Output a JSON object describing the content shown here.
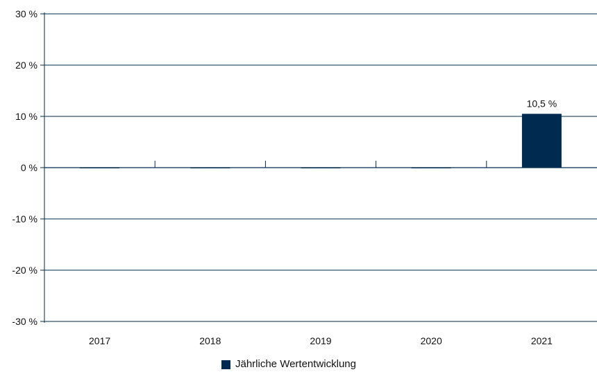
{
  "chart_data": {
    "type": "bar",
    "categories": [
      "2017",
      "2018",
      "2019",
      "2020",
      "2021"
    ],
    "series": [
      {
        "name": "Jährliche Wertentwicklung",
        "values": [
          0,
          0,
          0,
          0,
          10.5
        ]
      }
    ],
    "data_labels": [
      "",
      "",
      "",
      "",
      "10,5 %"
    ],
    "y_ticks": [
      30,
      20,
      10,
      0,
      -10,
      -20,
      -30
    ],
    "y_tick_labels": [
      "30 %",
      "20 %",
      "10 %",
      "0 %",
      "-10 %",
      "-20 %",
      "-30 %"
    ],
    "ylim": [
      -30,
      30
    ],
    "grid": true,
    "legend_position": "bottom",
    "colors": {
      "bar": "#002a50",
      "axis": "#002a50",
      "grid": "#002a50"
    }
  }
}
